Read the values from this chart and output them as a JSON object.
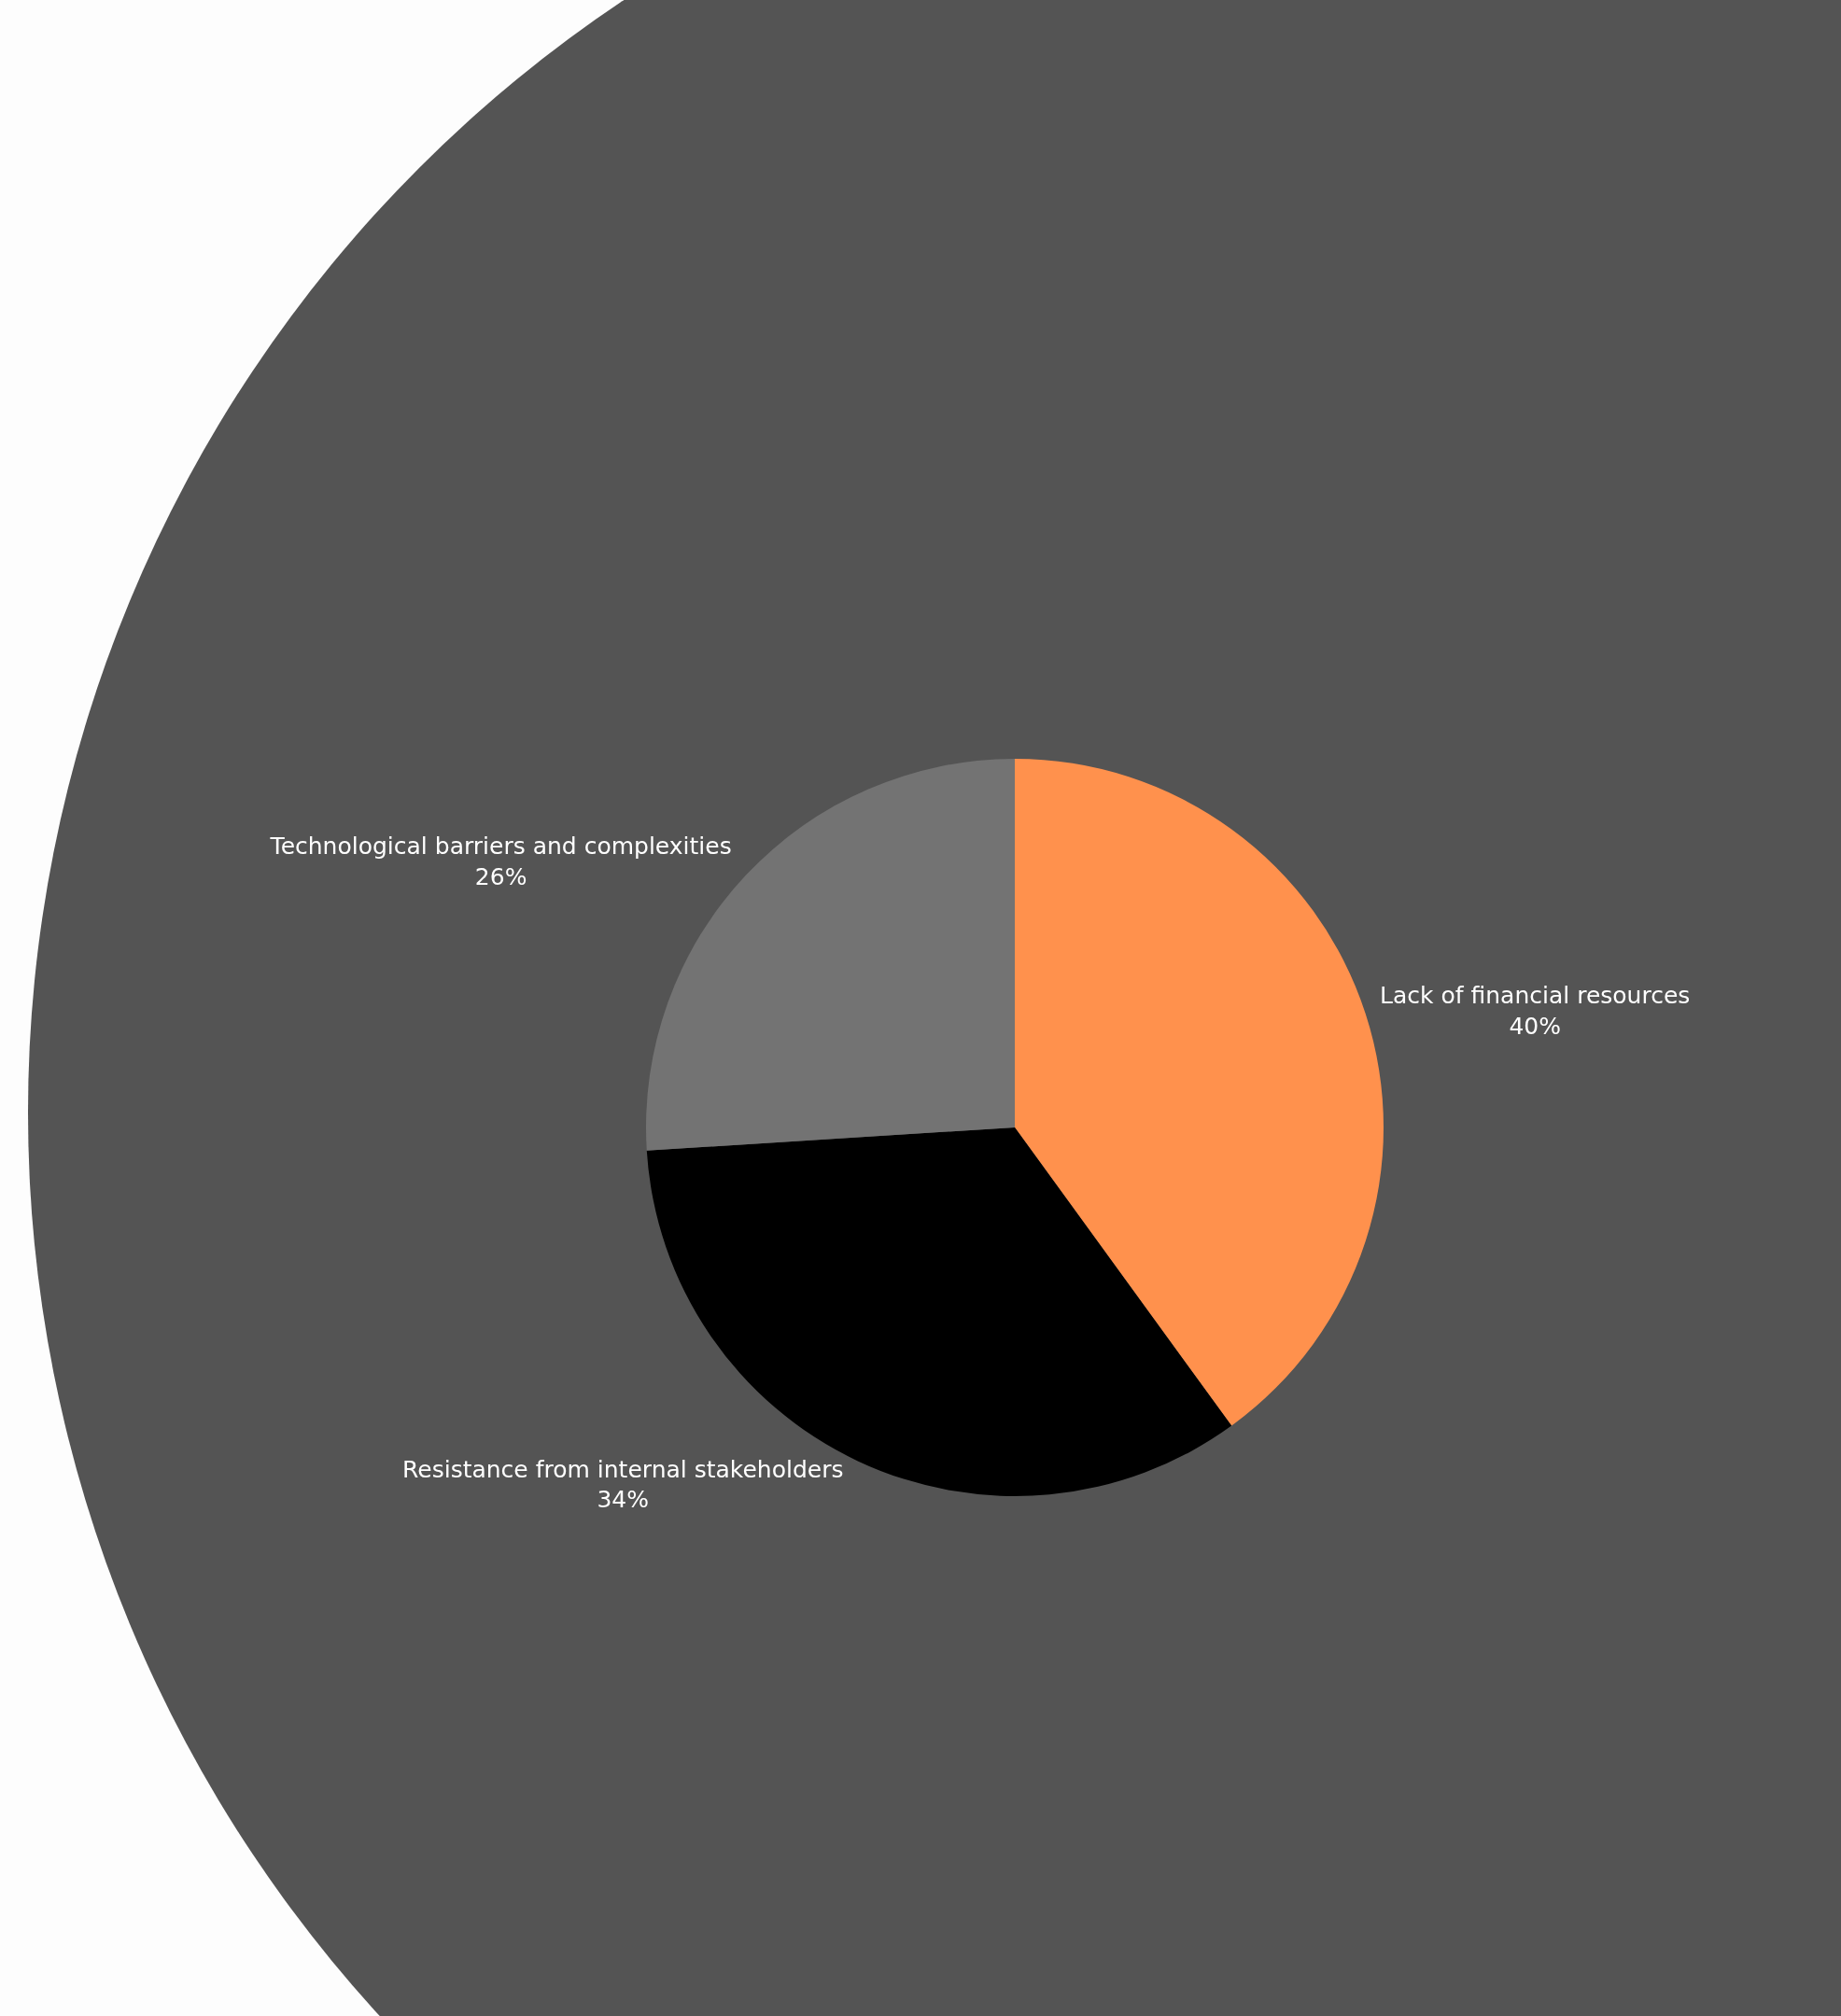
{
  "chart_data": {
    "type": "pie",
    "categories": [
      "Lack of financial resources",
      "Resistance from internal stakeholders",
      "Technological barriers and complexities"
    ],
    "values": [
      40,
      34,
      26
    ],
    "value_labels": [
      "40%",
      "34%",
      "26%"
    ],
    "colors": [
      "#ff914d",
      "#000000",
      "#737373"
    ]
  }
}
